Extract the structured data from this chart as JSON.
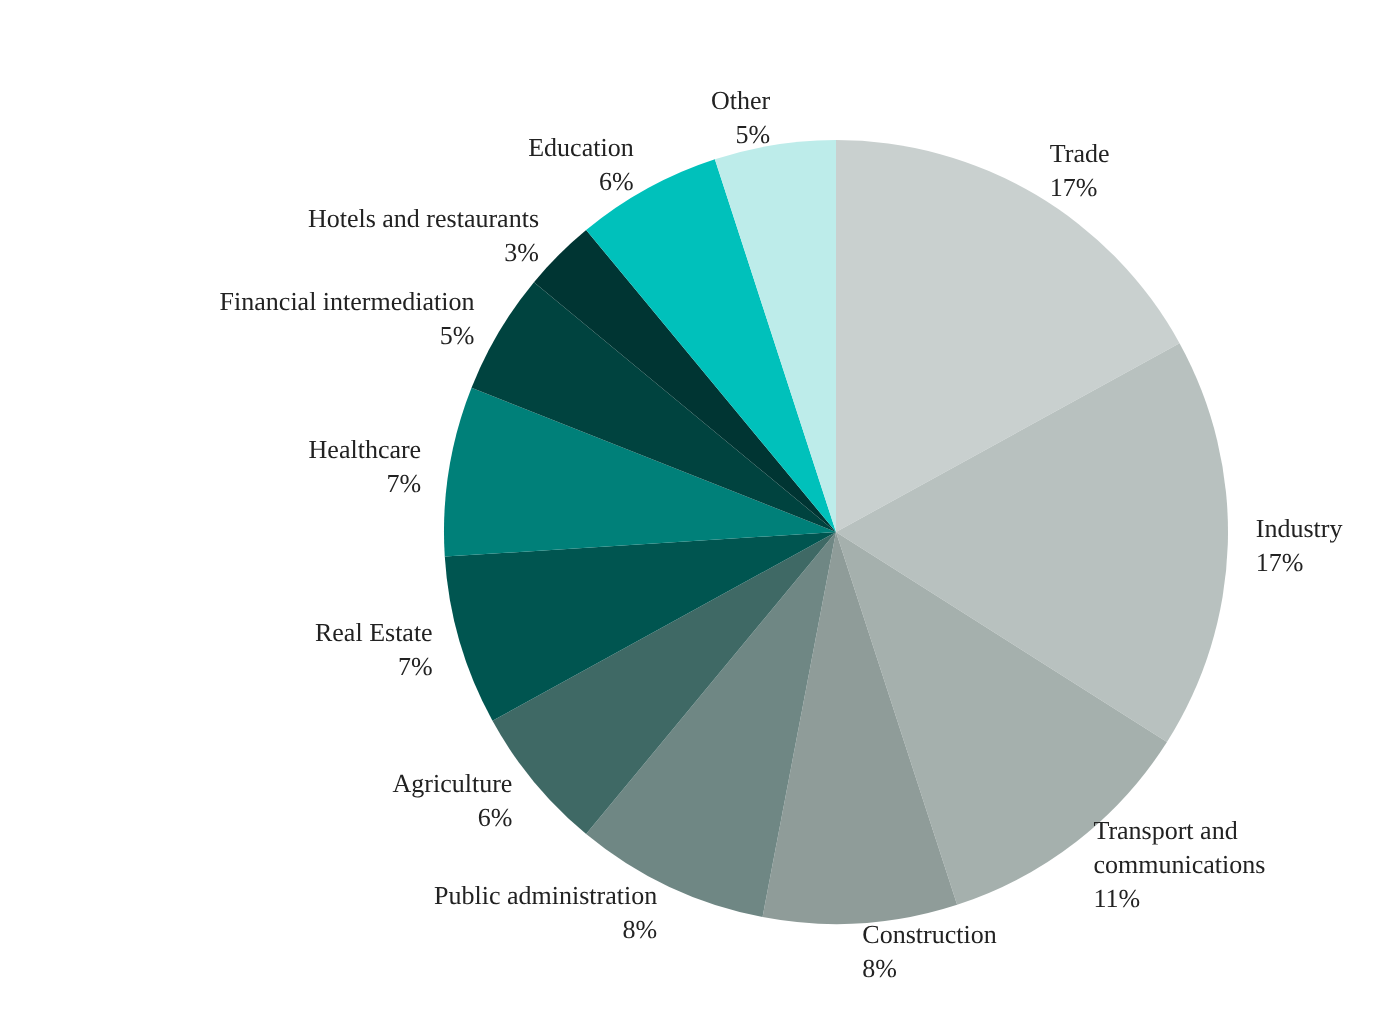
{
  "chart_data": {
    "type": "pie",
    "categories": [
      "Trade",
      "Industry",
      "Transport and communications",
      "Construction",
      "Public administration",
      "Agriculture",
      "Real Estate",
      "Healthcare",
      "Financial intermediation",
      "Hotels and restaurants",
      "Education",
      "Other"
    ],
    "values": [
      17,
      17,
      11,
      8,
      8,
      6,
      7,
      7,
      5,
      3,
      6,
      5
    ],
    "colors": [
      "#c9d0cf",
      "#b8c1bf",
      "#a5b0ad",
      "#8f9c99",
      "#6f8784",
      "#3f6965",
      "#005550",
      "#008079",
      "#00433f",
      "#003533",
      "#00c1bb",
      "#bdecea"
    ],
    "value_labels": [
      "17%",
      "17%",
      "11%",
      "8%",
      "8%",
      "6%",
      "7%",
      "7%",
      "5%",
      "3%",
      "6%",
      "5%"
    ],
    "legend": false
  }
}
